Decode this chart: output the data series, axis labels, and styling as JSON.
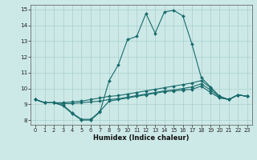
{
  "xlabel": "Humidex (Indice chaleur)",
  "xlim": [
    -0.5,
    23.5
  ],
  "ylim": [
    7.7,
    15.3
  ],
  "yticks": [
    8,
    9,
    10,
    11,
    12,
    13,
    14,
    15
  ],
  "xticks": [
    0,
    1,
    2,
    3,
    4,
    5,
    6,
    7,
    8,
    9,
    10,
    11,
    12,
    13,
    14,
    15,
    16,
    17,
    18,
    19,
    20,
    21,
    22,
    23
  ],
  "bg_color": "#cce9e7",
  "line_color": "#1a6b6b",
  "grid_color": "#aacfcc",
  "series": [
    {
      "x": [
        0,
        1,
        2,
        3,
        4,
        5,
        6,
        7,
        8,
        9,
        10,
        11,
        12,
        13,
        14,
        15,
        16,
        17,
        18,
        19,
        20,
        21,
        22,
        23
      ],
      "y": [
        9.3,
        9.1,
        9.1,
        8.9,
        8.4,
        8.0,
        8.0,
        8.5,
        10.5,
        11.5,
        13.1,
        13.3,
        14.75,
        13.5,
        14.85,
        14.95,
        14.6,
        12.8,
        10.7,
        10.1,
        9.5,
        9.3,
        9.6,
        9.5
      ]
    },
    {
      "x": [
        0,
        1,
        2,
        3,
        4,
        5,
        6,
        7,
        8,
        9,
        10,
        11,
        12,
        13,
        14,
        15,
        16,
        17,
        18,
        19,
        20,
        21,
        22,
        23
      ],
      "y": [
        9.3,
        9.1,
        9.1,
        9.1,
        9.15,
        9.2,
        9.3,
        9.4,
        9.5,
        9.55,
        9.65,
        9.75,
        9.85,
        9.95,
        10.05,
        10.15,
        10.25,
        10.35,
        10.5,
        10.05,
        9.5,
        9.3,
        9.6,
        9.5
      ]
    },
    {
      "x": [
        0,
        1,
        2,
        3,
        4,
        5,
        6,
        7,
        8,
        9,
        10,
        11,
        12,
        13,
        14,
        15,
        16,
        17,
        18,
        19,
        20,
        21,
        22,
        23
      ],
      "y": [
        9.3,
        9.1,
        9.1,
        9.05,
        9.05,
        9.1,
        9.15,
        9.2,
        9.3,
        9.35,
        9.45,
        9.55,
        9.65,
        9.75,
        9.85,
        9.9,
        10.0,
        10.1,
        10.3,
        9.9,
        9.45,
        9.3,
        9.6,
        9.5
      ]
    },
    {
      "x": [
        0,
        1,
        2,
        3,
        4,
        5,
        6,
        7,
        8,
        9,
        10,
        11,
        12,
        13,
        14,
        15,
        16,
        17,
        18,
        19,
        20,
        21,
        22,
        23
      ],
      "y": [
        9.3,
        9.1,
        9.1,
        8.95,
        8.45,
        8.05,
        8.05,
        8.55,
        9.2,
        9.3,
        9.4,
        9.5,
        9.6,
        9.7,
        9.8,
        9.85,
        9.9,
        9.95,
        10.15,
        9.75,
        9.4,
        9.3,
        9.6,
        9.5
      ]
    }
  ]
}
